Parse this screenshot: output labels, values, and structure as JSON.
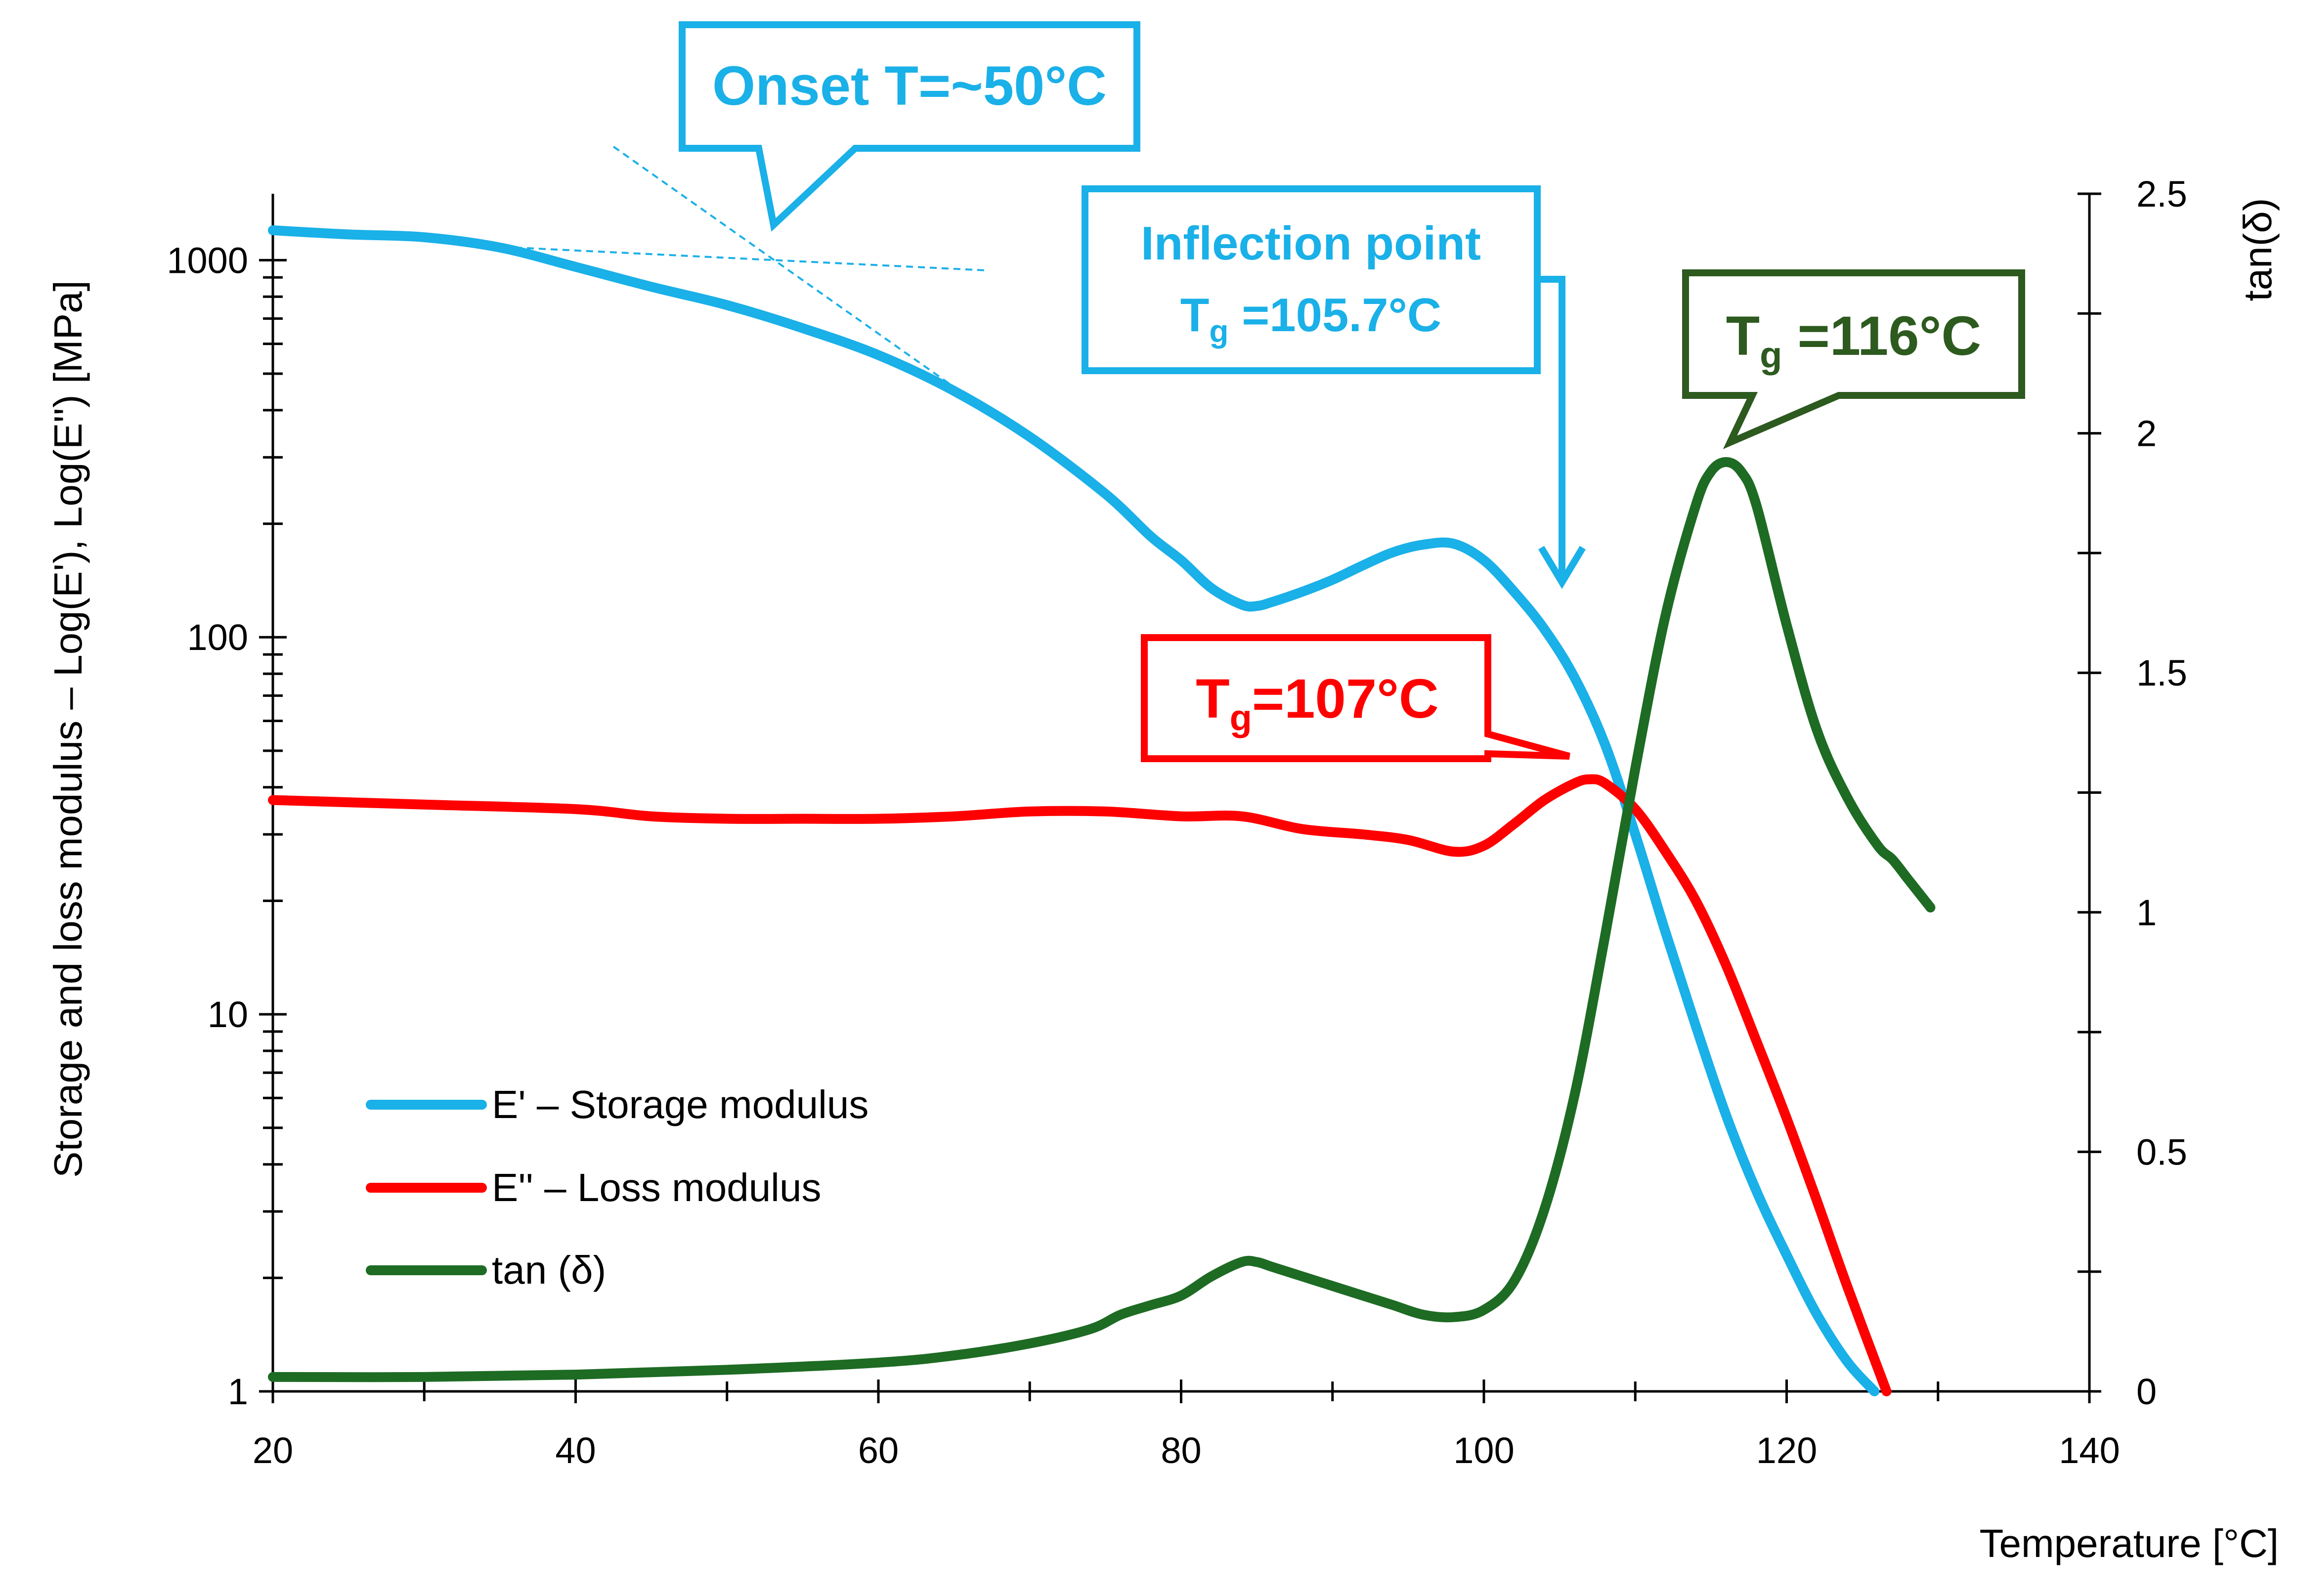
{
  "chart_data": {
    "type": "line",
    "xlabel": "Temperature  [°C]",
    "ylabel": "Storage  and loss modulus – Log(E'), Log(E'') [MPa]",
    "y2label": "tan(δ)",
    "xlim": [
      20,
      140
    ],
    "ylim": [
      1,
      1500
    ],
    "yscale": "log",
    "y2lim": [
      0,
      2.5
    ],
    "x_ticks": [
      20,
      40,
      60,
      80,
      100,
      120,
      140
    ],
    "x_tick_labels": [
      "20",
      "40",
      "60",
      "80",
      "100",
      "120",
      "140"
    ],
    "y_ticks": [
      1,
      10,
      100,
      1000
    ],
    "y_tick_labels": [
      "1",
      "10",
      "100",
      "1000"
    ],
    "y2_ticks": [
      0,
      0.5,
      1,
      1.5,
      2,
      2.5
    ],
    "y2_tick_labels": [
      "0",
      "0.5",
      "1",
      "1.5",
      "2",
      "2.5"
    ],
    "series": [
      {
        "name": "E' – Storage modulus",
        "axis": "left",
        "color": "#1AB0E8",
        "x": [
          20,
          25,
          30,
          35,
          40,
          45,
          50,
          55,
          60,
          65,
          70,
          75,
          78,
          80,
          82,
          84,
          85,
          86,
          88,
          90,
          92,
          94,
          96,
          98,
          100,
          102,
          104,
          106,
          108,
          110,
          112,
          114,
          116,
          118,
          120,
          122,
          124,
          125.8
        ],
        "values": [
          1200,
          1170,
          1150,
          1080,
          960,
          850,
          760,
          660,
          560,
          450,
          340,
          240,
          185,
          160,
          135,
          122,
          121,
          124,
          132,
          142,
          155,
          168,
          176,
          177,
          160,
          132,
          105,
          78,
          52,
          30,
          16.5,
          9.3,
          5.4,
          3.4,
          2.3,
          1.6,
          1.2,
          1
        ]
      },
      {
        "name": "E'' – Loss modulus",
        "axis": "left",
        "color": "#FF0000",
        "x": [
          20,
          30,
          40,
          45,
          50,
          55,
          60,
          65,
          70,
          75,
          80,
          84,
          88,
          92,
          95,
          98,
          100,
          102,
          104,
          106,
          107,
          108,
          110,
          112,
          114,
          116,
          118,
          120,
          122,
          124,
          126.6
        ],
        "values": [
          37,
          36,
          35,
          33.5,
          33,
          33,
          33,
          33.5,
          34.5,
          34.5,
          33.5,
          33.5,
          31,
          30,
          29,
          27,
          28,
          32,
          37,
          41,
          42,
          41,
          35,
          27,
          20,
          13.5,
          8.5,
          5.3,
          3.2,
          1.9,
          1
        ]
      },
      {
        "name": "tan (δ)",
        "axis": "right",
        "color": "#1E6B24",
        "x": [
          20,
          30,
          40,
          50,
          60,
          65,
          70,
          74,
          76,
          78,
          80,
          82,
          84,
          85,
          86,
          88,
          90,
          92,
          94,
          96,
          98,
          100,
          102,
          104,
          106,
          108,
          110,
          112,
          114,
          115,
          116,
          117,
          118,
          120,
          122,
          124,
          126,
          127,
          128,
          129,
          129.5
        ],
        "values": [
          0.03,
          0.03,
          0.035,
          0.045,
          0.06,
          0.075,
          0.1,
          0.13,
          0.16,
          0.18,
          0.2,
          0.24,
          0.27,
          0.27,
          0.26,
          0.24,
          0.22,
          0.2,
          0.18,
          0.16,
          0.155,
          0.17,
          0.23,
          0.38,
          0.62,
          0.95,
          1.3,
          1.62,
          1.85,
          1.92,
          1.94,
          1.92,
          1.85,
          1.6,
          1.38,
          1.24,
          1.14,
          1.11,
          1.07,
          1.03,
          1.01
        ]
      }
    ],
    "onset_tangent_lines": [
      {
        "x": [
          36,
          67
        ],
        "values": [
          1080,
          940
        ]
      },
      {
        "x": [
          42.5,
          75
        ],
        "values": [
          2000,
          240
        ]
      }
    ],
    "legend": [
      {
        "label": "E' – Storage modulus",
        "color": "#1AB0E8"
      },
      {
        "label": "E'' – Loss modulus",
        "color": "#FF0000"
      },
      {
        "label": "tan (δ)",
        "color": "#1E6B24"
      }
    ],
    "legend_position": "bottom-left",
    "annotations": {
      "onset": {
        "text": "Onset T=~50°C",
        "color": "#1AB0E8"
      },
      "inflection": {
        "line1": "Inflection point",
        "prefix": "T",
        "sub": "g",
        "value": " =105.7°C",
        "color": "#1AB0E8"
      },
      "tg_loss": {
        "prefix": "T",
        "sub": "g",
        "value": "=107°C",
        "color": "#FF0000"
      },
      "tg_tan": {
        "prefix": "T",
        "sub": "g",
        "value": " =116°C",
        "color": "#2D5A1E"
      }
    }
  }
}
